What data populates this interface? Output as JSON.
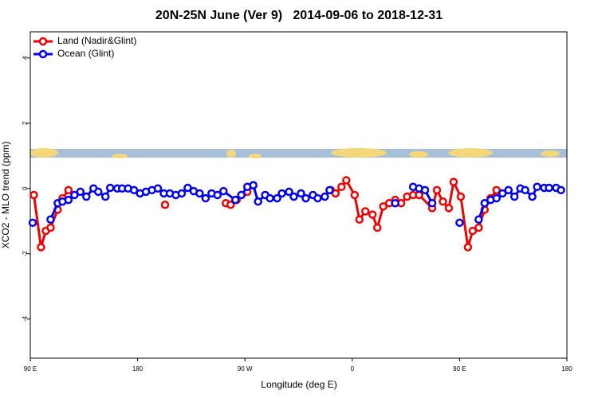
{
  "chart_data": {
    "type": "line",
    "title": "20N-25N June (Ver 9)   2014-09-06 to 2018-12-31",
    "x_label": "Longitude (deg E)",
    "y_label": "XCO2 - MLO trend (ppm)",
    "xlim": [
      90,
      540
    ],
    "ylim": [
      -5.2,
      4.8
    ],
    "xticks": [
      {
        "value": 90,
        "label": "90 E"
      },
      180,
      {
        "value": 270,
        "label": "90 W"
      },
      {
        "value": 360,
        "label": "0"
      },
      {
        "value": 450,
        "label": "90 E"
      },
      {
        "value": 540,
        "label": "180"
      }
    ],
    "yticks": [
      -4,
      -2,
      0,
      2,
      4
    ],
    "legend": "top-left",
    "series": [
      {
        "name": "Land (Nadir&Glint)",
        "color": "#ee0000",
        "x": [
          93,
          99,
          103,
          107,
          113,
          117,
          122,
          203,
          254,
          258,
          263,
          272,
          277,
          342,
          346,
          351,
          355,
          362,
          366,
          371,
          377,
          381,
          386,
          391,
          396,
          401,
          406,
          411,
          416,
          427,
          431,
          436,
          441,
          445,
          451,
          457,
          461,
          466,
          471,
          476,
          481
        ],
        "values": [
          -0.2,
          -1.8,
          -1.3,
          -1.2,
          -0.65,
          -0.3,
          -0.05,
          -0.5,
          -0.45,
          -0.5,
          -0.35,
          -0.1,
          0.1,
          -0.05,
          -0.15,
          0.05,
          0.25,
          -0.2,
          -0.95,
          -0.7,
          -0.8,
          -1.2,
          -0.55,
          -0.45,
          -0.35,
          -0.45,
          -0.25,
          -0.2,
          -0.2,
          -0.6,
          -0.05,
          -0.4,
          -0.6,
          0.2,
          -0.25,
          -1.8,
          -1.3,
          -1.2,
          -0.65,
          -0.3,
          -0.05
        ]
      },
      {
        "name": "Ocean (Glint)",
        "color": "#0000ee",
        "x": [
          92,
          107,
          113,
          117,
          122,
          127,
          132,
          137,
          143,
          147,
          153,
          157,
          163,
          167,
          172,
          177,
          182,
          187,
          192,
          197,
          202,
          207,
          212,
          217,
          222,
          227,
          232,
          237,
          242,
          247,
          252,
          262,
          267,
          272,
          277,
          281,
          287,
          291,
          297,
          301,
          307,
          311,
          317,
          321,
          327,
          331,
          337,
          341,
          396,
          411,
          416,
          421,
          427,
          450,
          466,
          471,
          476,
          481,
          486,
          491,
          496,
          501,
          505,
          511,
          515,
          521,
          525,
          531,
          535
        ],
        "values": [
          -1.05,
          -0.95,
          -0.45,
          -0.4,
          -0.35,
          -0.2,
          -0.1,
          -0.25,
          0,
          -0.1,
          -0.25,
          0.02,
          0,
          0,
          0,
          -0.05,
          -0.15,
          -0.1,
          -0.05,
          0,
          -0.15,
          -0.15,
          -0.2,
          -0.15,
          0.02,
          -0.08,
          -0.15,
          -0.3,
          -0.15,
          -0.2,
          -0.08,
          -0.35,
          -0.2,
          0.05,
          0.1,
          -0.4,
          -0.2,
          -0.3,
          -0.3,
          -0.15,
          -0.1,
          -0.25,
          -0.15,
          -0.3,
          -0.2,
          -0.3,
          -0.25,
          -0.05,
          -0.45,
          0.05,
          0,
          -0.05,
          -0.45,
          -1.05,
          -0.95,
          -0.45,
          -0.35,
          -0.3,
          -0.15,
          -0.05,
          -0.25,
          0,
          -0.05,
          -0.25,
          0.05,
          0.02,
          0.02,
          0.02,
          -0.05
        ]
      }
    ]
  }
}
